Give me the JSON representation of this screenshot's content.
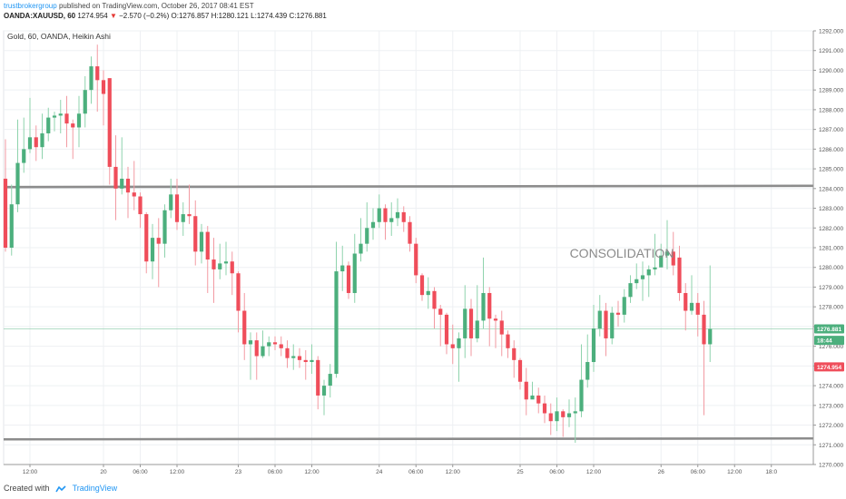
{
  "header": {
    "author": "trustbrokergroup",
    "published_text": "published on TradingView.com, October 26, 2017 08:41 EST",
    "symbol": "OANDA:XAUUSD, 60",
    "last": "1274.954",
    "change_arrow": "▼",
    "change": "−2.570 (−0.2%)",
    "ohlc_o": "O:1276.857",
    "ohlc_h": "H:1280.121",
    "ohlc_l": "L:1274.439",
    "ohlc_c": "C:1276.881"
  },
  "footer": {
    "created_with": "Created with",
    "brand": "TradingView",
    "logo_icon": "tradingview-cloud-icon"
  },
  "colors": {
    "up": "#4caf7d",
    "down": "#ef4d5a",
    "wick_up": "#8fd3ad",
    "wick_down": "#f29aa2",
    "grid": "#eef0f3",
    "level_line": "#8c8c8c",
    "badge_green": "#4caf7d",
    "badge_red": "#ef4d5a"
  },
  "chart_data": {
    "type": "candlestick",
    "title": "Gold, 60, OANDA, Heikin Ashi",
    "annotation": "CONSOLIDATION",
    "ylim": [
      1270,
      1292
    ],
    "y_ticks": [
      "1270.000",
      "1271.000",
      "1272.000",
      "1273.000",
      "1274.000",
      "1275.000",
      "1276.000",
      "1277.000",
      "1278.000",
      "1279.000",
      "1280.000",
      "1281.000",
      "1282.000",
      "1283.000",
      "1284.000",
      "1285.000",
      "1286.000",
      "1287.000",
      "1288.000",
      "1289.000",
      "1290.000",
      "1291.000",
      "1292.000"
    ],
    "x_ticks": [
      {
        "label": "12:00",
        "bar": 4
      },
      {
        "label": "20",
        "bar": 16
      },
      {
        "label": "06:00",
        "bar": 22
      },
      {
        "label": "12:00",
        "bar": 28
      },
      {
        "label": "23",
        "bar": 38
      },
      {
        "label": "06:00",
        "bar": 44
      },
      {
        "label": "12:00",
        "bar": 50
      },
      {
        "label": "24",
        "bar": 61
      },
      {
        "label": "06:00",
        "bar": 67
      },
      {
        "label": "12:00",
        "bar": 73
      },
      {
        "label": "25",
        "bar": 84
      },
      {
        "label": "06:00",
        "bar": 90
      },
      {
        "label": "12:00",
        "bar": 96
      },
      {
        "label": "26",
        "bar": 107
      },
      {
        "label": "06:00",
        "bar": 113
      },
      {
        "label": "12:00",
        "bar": 119
      },
      {
        "label": "18:0",
        "bar": 125
      }
    ],
    "resistance": 1284.1,
    "support": 1271.3,
    "price_labels": [
      {
        "value": 1276.881,
        "text": "1276.881",
        "kind": "green"
      },
      {
        "value": 1276.3,
        "text": "18:44",
        "kind": "green"
      },
      {
        "value": 1274.954,
        "text": "1274.954",
        "kind": "red"
      }
    ],
    "candles": [
      [
        1284.5,
        1281,
        1286.5,
        1280.8
      ],
      [
        1281,
        1283.2,
        1284.2,
        1280.6
      ],
      [
        1283.2,
        1285.3,
        1287.5,
        1282.8
      ],
      [
        1285.3,
        1286,
        1287.6,
        1284.8
      ],
      [
        1286,
        1286.6,
        1288.6,
        1285.8
      ],
      [
        1286.6,
        1286.1,
        1287.2,
        1285.4
      ],
      [
        1286.1,
        1286.8,
        1287.8,
        1285.5
      ],
      [
        1286.8,
        1287.6,
        1288.1,
        1286.4
      ],
      [
        1287.6,
        1287.7,
        1287.9,
        1286.9
      ],
      [
        1287.7,
        1287.8,
        1288.5,
        1286.8
      ],
      [
        1287.8,
        1287.3,
        1288.7,
        1286.1
      ],
      [
        1287.3,
        1287.1,
        1287.5,
        1285.5
      ],
      [
        1287.1,
        1287.8,
        1288.7,
        1286.1
      ],
      [
        1287.8,
        1289,
        1289.7,
        1287.1
      ],
      [
        1289,
        1290.2,
        1290.7,
        1288.3
      ],
      [
        1290.2,
        1289.5,
        1291.3,
        1287.9
      ],
      [
        1289.5,
        1288.8,
        1290,
        1287.2
      ],
      [
        1289.6,
        1285.1,
        1289.6,
        1284.2
      ],
      [
        1285.1,
        1284,
        1286.7,
        1282.4
      ],
      [
        1284,
        1284.5,
        1286.6,
        1283.7
      ],
      [
        1284.5,
        1283.8,
        1285.1,
        1282.5
      ],
      [
        1283.8,
        1283.6,
        1285.4,
        1282.9
      ],
      [
        1283.6,
        1282.7,
        1283.8,
        1282
      ],
      [
        1282.7,
        1280.3,
        1282.8,
        1279.7
      ],
      [
        1280.3,
        1281.5,
        1282.2,
        1279.4
      ],
      [
        1281.5,
        1281.2,
        1282.5,
        1279
      ],
      [
        1281.2,
        1282.9,
        1283.2,
        1280.5
      ],
      [
        1282.9,
        1283.7,
        1284.5,
        1282.5
      ],
      [
        1283.7,
        1282.3,
        1284.5,
        1281.9
      ],
      [
        1282.3,
        1282.7,
        1283.3,
        1281.6
      ],
      [
        1282.7,
        1282.6,
        1284.2,
        1282.2
      ],
      [
        1282.6,
        1280.8,
        1283.4,
        1280.1
      ],
      [
        1280.8,
        1281.8,
        1282.2,
        1280.2
      ],
      [
        1281.8,
        1280.4,
        1282.1,
        1278.7
      ],
      [
        1280.4,
        1279.9,
        1281.5,
        1278.2
      ],
      [
        1279.9,
        1280.2,
        1281.2,
        1279.4
      ],
      [
        1280.2,
        1280.3,
        1281.3,
        1279.6
      ],
      [
        1280.3,
        1279.7,
        1280.8,
        1278.6
      ],
      [
        1279.7,
        1277.8,
        1279.8,
        1276.7
      ],
      [
        1277.8,
        1276.1,
        1278.7,
        1275.3
      ],
      [
        1276.1,
        1276.3,
        1276.7,
        1274.3
      ],
      [
        1276.3,
        1275.5,
        1276.7,
        1274.3
      ],
      [
        1275.5,
        1276,
        1276.8,
        1275.4
      ],
      [
        1276,
        1276.2,
        1276.5,
        1275.5
      ],
      [
        1276.2,
        1276.1,
        1276.5,
        1275.8
      ],
      [
        1276.1,
        1275.9,
        1276.5,
        1275.5
      ],
      [
        1275.9,
        1275.4,
        1276.3,
        1274.9
      ],
      [
        1275.4,
        1275.5,
        1276.1,
        1274.8
      ],
      [
        1275.5,
        1275.3,
        1275.9,
        1274.9
      ],
      [
        1275.3,
        1275.2,
        1275.8,
        1274.3
      ],
      [
        1275.2,
        1275.3,
        1276.1,
        1274.6
      ],
      [
        1275.3,
        1273.5,
        1275.5,
        1272.8
      ],
      [
        1273.5,
        1274,
        1274.3,
        1272.5
      ],
      [
        1274,
        1274.6,
        1275.1,
        1273.4
      ],
      [
        1274.6,
        1279.8,
        1281.3,
        1274.4
      ],
      [
        1279.8,
        1280.1,
        1281.1,
        1278.8
      ],
      [
        1280.1,
        1278.7,
        1280.3,
        1278.4
      ],
      [
        1278.7,
        1280.7,
        1281.7,
        1278.2
      ],
      [
        1280.7,
        1281.2,
        1282.5,
        1280.3
      ],
      [
        1281.2,
        1282,
        1283.3,
        1280.8
      ],
      [
        1282,
        1282.3,
        1283,
        1281.4
      ],
      [
        1282.3,
        1283,
        1283.7,
        1282
      ],
      [
        1283,
        1282.3,
        1283.2,
        1281.4
      ],
      [
        1282.3,
        1282.5,
        1283.3,
        1281.6
      ],
      [
        1282.5,
        1282.8,
        1283.5,
        1282.1
      ],
      [
        1282.8,
        1282.3,
        1283.1,
        1281.8
      ],
      [
        1282.3,
        1281.2,
        1282.6,
        1280.8
      ],
      [
        1281.2,
        1279.6,
        1281.5,
        1279.2
      ],
      [
        1279.6,
        1278.6,
        1279.7,
        1278.3
      ],
      [
        1278.6,
        1278.8,
        1279.5,
        1277.9
      ],
      [
        1278.8,
        1277.9,
        1279,
        1276.9
      ],
      [
        1277.9,
        1277.6,
        1278.1,
        1276
      ],
      [
        1277.6,
        1276.1,
        1277.7,
        1275.6
      ],
      [
        1276.1,
        1275.9,
        1277.1,
        1275.1
      ],
      [
        1275.9,
        1276.4,
        1276.7,
        1274.2
      ],
      [
        1276.4,
        1277.9,
        1279.1,
        1275.4
      ],
      [
        1277.9,
        1276.4,
        1278.4,
        1275.5
      ],
      [
        1276.4,
        1277.3,
        1279.1,
        1276.2
      ],
      [
        1277.3,
        1278.7,
        1280.5,
        1276.9
      ],
      [
        1278.7,
        1277.4,
        1279,
        1276
      ],
      [
        1277.4,
        1277.3,
        1277.6,
        1275.9
      ],
      [
        1277.3,
        1276.6,
        1277.8,
        1275.5
      ],
      [
        1276.6,
        1275.9,
        1276.8,
        1275.4
      ],
      [
        1275.9,
        1275.3,
        1276.3,
        1274.4
      ],
      [
        1275.3,
        1274.2,
        1275.4,
        1273.8
      ],
      [
        1274.2,
        1273.3,
        1274.9,
        1272.5
      ],
      [
        1273.3,
        1273.5,
        1274.2,
        1273.4
      ],
      [
        1273.5,
        1273.1,
        1273.9,
        1272.6
      ],
      [
        1273.1,
        1272.6,
        1273.5,
        1272.1
      ],
      [
        1272.6,
        1272.2,
        1273.1,
        1271.5
      ],
      [
        1272.2,
        1272.7,
        1273.4,
        1271.7
      ],
      [
        1272.7,
        1272.4,
        1272.8,
        1271.4
      ],
      [
        1272.4,
        1272.6,
        1273.3,
        1271.9
      ],
      [
        1272.6,
        1272.7,
        1273.4,
        1271.1
      ],
      [
        1272.7,
        1274.3,
        1276.1,
        1272.4
      ],
      [
        1274.3,
        1275.2,
        1276.6,
        1273.9
      ],
      [
        1275.2,
        1276.9,
        1278.1,
        1274.7
      ],
      [
        1276.9,
        1277.8,
        1278.6,
        1276.5
      ],
      [
        1277.8,
        1276.4,
        1278.2,
        1275.5
      ],
      [
        1276.4,
        1277.7,
        1278,
        1276.1
      ],
      [
        1277.7,
        1277.6,
        1278.3,
        1277
      ],
      [
        1277.6,
        1278.5,
        1278.9,
        1277.2
      ],
      [
        1278.5,
        1279.2,
        1279.6,
        1278.2
      ],
      [
        1279.2,
        1279.4,
        1280.2,
        1278.9
      ],
      [
        1279.4,
        1279.6,
        1280.3,
        1278.3
      ],
      [
        1279.6,
        1279.9,
        1280.1,
        1278.5
      ],
      [
        1279.9,
        1280,
        1281.7,
        1279.6
      ],
      [
        1280,
        1280.6,
        1281.2,
        1280.1
      ],
      [
        1280.6,
        1280.8,
        1282.4,
        1279.9
      ],
      [
        1280.8,
        1280.1,
        1281.8,
        1279.6
      ],
      [
        1280.5,
        1278.7,
        1281.1,
        1278.3
      ],
      [
        1278.7,
        1277.8,
        1279.2,
        1276.8
      ],
      [
        1277.8,
        1278.2,
        1279.6,
        1277.6
      ],
      [
        1278.2,
        1277.6,
        1278.7,
        1276.5
      ],
      [
        1277.6,
        1276.1,
        1278.3,
        1272.5
      ],
      [
        1276.1,
        1276.88,
        1280.1,
        1275.2
      ]
    ]
  }
}
